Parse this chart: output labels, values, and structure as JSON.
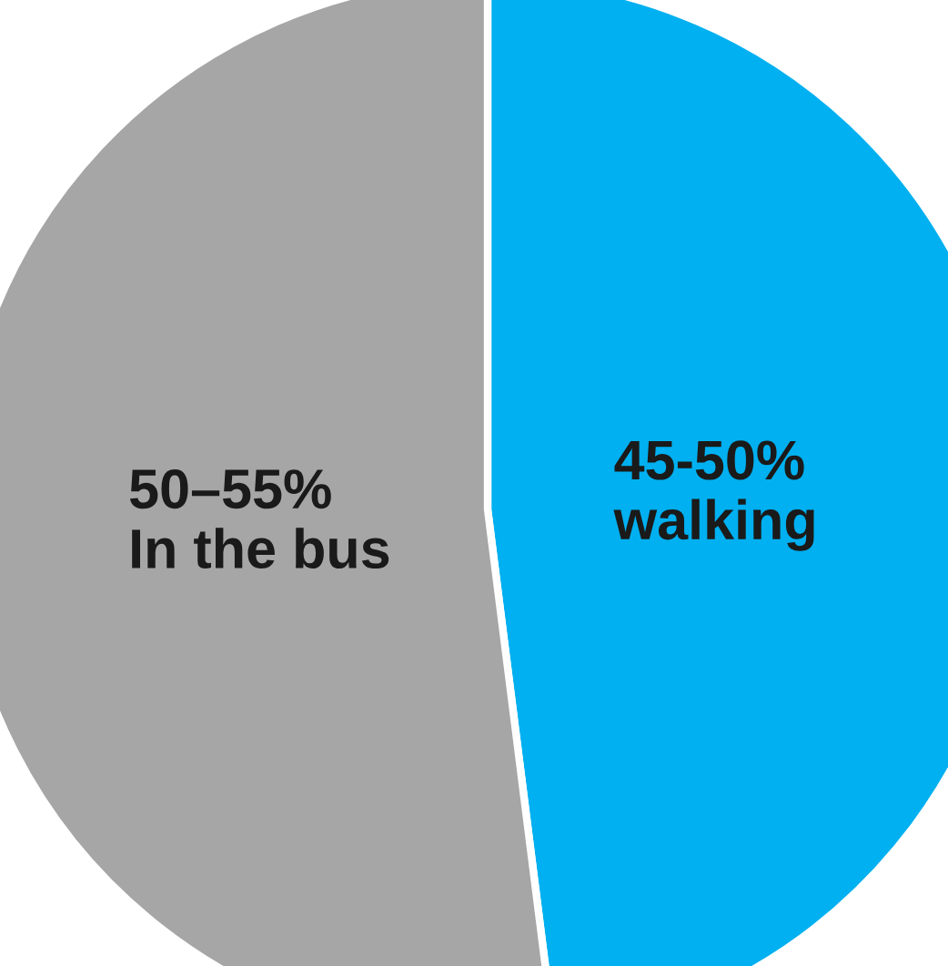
{
  "chart_data": {
    "type": "pie",
    "categories": [
      "45-50% walking",
      "50–55% In the bus"
    ],
    "values": [
      48,
      52
    ],
    "colors": [
      "#00b0f0",
      "#a6a6a6"
    ]
  }
}
